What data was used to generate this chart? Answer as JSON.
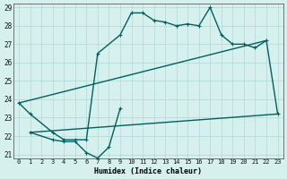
{
  "xlabel": "Humidex (Indice chaleur)",
  "bg_color": "#d6f0ee",
  "grid_color": "#b0d8d5",
  "line_color": "#006060",
  "xlim": [
    -0.5,
    23.5
  ],
  "ylim": [
    21,
    29
  ],
  "xticks": [
    0,
    1,
    2,
    3,
    4,
    5,
    6,
    7,
    8,
    9,
    10,
    11,
    12,
    13,
    14,
    15,
    16,
    17,
    18,
    19,
    20,
    21,
    22,
    23
  ],
  "yticks": [
    21,
    22,
    23,
    24,
    25,
    26,
    27,
    28,
    29
  ],
  "series": [
    {
      "x": [
        0,
        1,
        3,
        4,
        5,
        6,
        7,
        9,
        10,
        11,
        12,
        13,
        14,
        15,
        16,
        17,
        18,
        19,
        20,
        21,
        22,
        23
      ],
      "y": [
        23.8,
        23.2,
        22.2,
        21.8,
        21.8,
        21.8,
        26.5,
        27.5,
        28.7,
        28.7,
        28.3,
        28.2,
        28.0,
        28.1,
        28.0,
        29.0,
        27.5,
        27.0,
        27.0,
        26.8,
        27.2,
        23.2
      ],
      "marker": true,
      "marker_size": 2.5,
      "linewidth": 1.0
    },
    {
      "x": [
        1,
        3,
        4,
        5,
        6,
        7,
        8,
        9
      ],
      "y": [
        22.2,
        21.8,
        21.7,
        21.7,
        21.1,
        20.8,
        21.4,
        23.5
      ],
      "marker": true,
      "marker_size": 2.5,
      "linewidth": 1.0
    },
    {
      "x": [
        0,
        22
      ],
      "y": [
        23.8,
        27.2
      ],
      "marker": false,
      "linewidth": 1.0
    },
    {
      "x": [
        1,
        23
      ],
      "y": [
        22.2,
        23.2
      ],
      "marker": false,
      "linewidth": 1.0
    }
  ]
}
